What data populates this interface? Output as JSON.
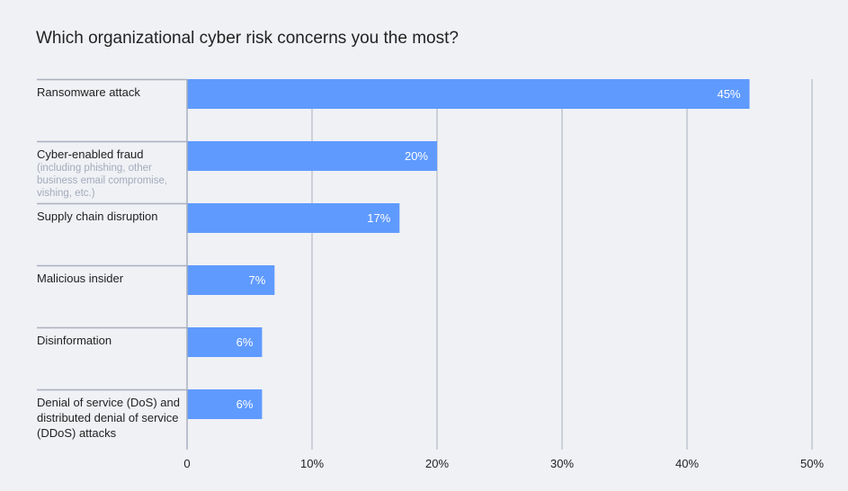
{
  "chart_data": {
    "type": "bar",
    "orientation": "horizontal",
    "title": "Which organizational cyber risk concerns you the most?",
    "categories": [
      {
        "label": "Ransomware attack",
        "note": ""
      },
      {
        "label": "Cyber-enabled fraud",
        "note": "(including phishing, other business email compromise, vishing, etc.)"
      },
      {
        "label": "Supply chain disruption",
        "note": ""
      },
      {
        "label": "Malicious insider",
        "note": ""
      },
      {
        "label": "Disinformation",
        "note": ""
      },
      {
        "label": "Denial of service (DoS) and distributed denial of service (DDoS) attacks",
        "note": ""
      }
    ],
    "values": [
      45,
      20,
      17,
      7,
      6,
      6
    ],
    "data_labels": [
      "45%",
      "20%",
      "17%",
      "7%",
      "6%",
      "6%"
    ],
    "xlim": [
      0,
      50
    ],
    "xticks": [
      "0",
      "10%",
      "20%",
      "30%",
      "40%",
      "50%"
    ],
    "grid": true,
    "bar_color": "#5f9aff",
    "grid_color": "#a9afbd"
  }
}
